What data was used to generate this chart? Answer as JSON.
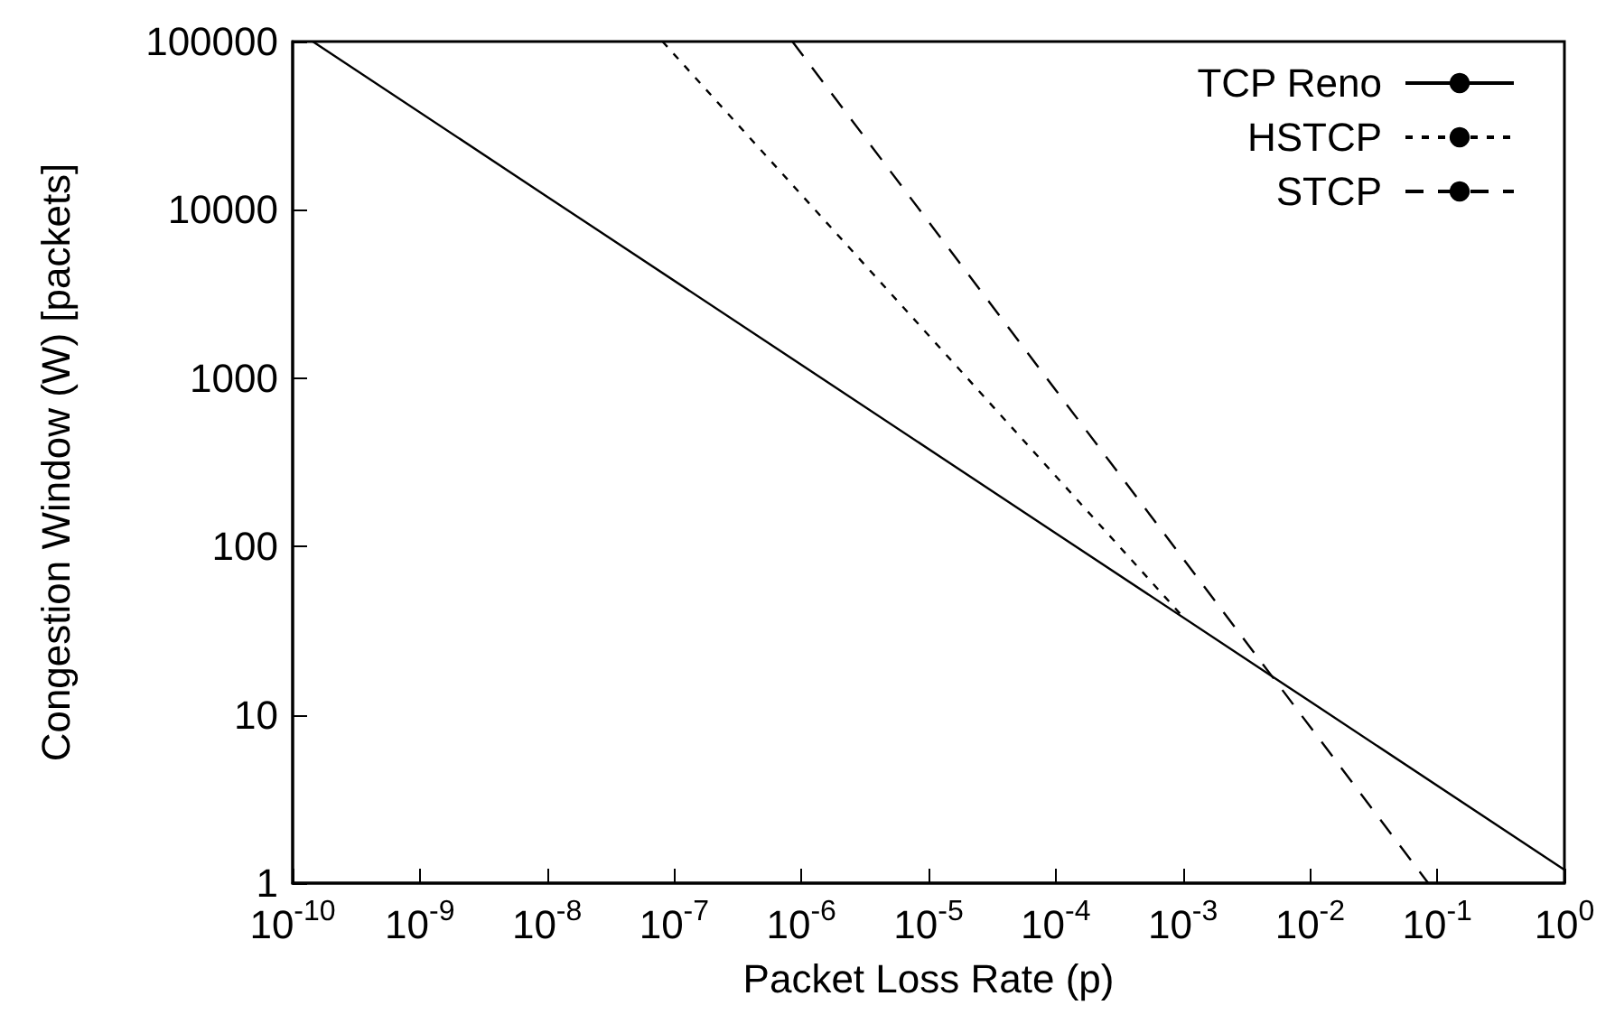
{
  "chart_data": {
    "type": "line",
    "xlabel": "Packet Loss Rate (p)",
    "ylabel": "Congestion Window (W) [packets]",
    "log": "xy",
    "grid": false,
    "legend": "top right",
    "marker": "none",
    "xlim": [
      1e-10,
      1
    ],
    "ylim": [
      1,
      100000
    ],
    "xticks": [
      {
        "value": 1e-10,
        "label": "10$^{-10}$"
      },
      {
        "value": 1e-09,
        "label": "10$^{-9}$"
      },
      {
        "value": 1e-08,
        "label": "10$^{-8}$"
      },
      {
        "value": 1e-07,
        "label": "10$^{-7}$"
      },
      {
        "value": 1e-06,
        "label": "10$^{-6}$"
      },
      {
        "value": 1e-05,
        "label": "10$^{-5}$"
      },
      {
        "value": 0.0001,
        "label": "10$^{-4}$"
      },
      {
        "value": 0.001,
        "label": "10$^{-3}$"
      },
      {
        "value": 0.01,
        "label": "10$^{-2}$"
      },
      {
        "value": 0.1,
        "label": "10$^{-1}$"
      },
      {
        "value": 1,
        "label": "10$^{0}$"
      }
    ],
    "yticks": [
      1,
      10,
      100,
      1000,
      10000,
      100000
    ],
    "series": [
      {
        "name": "TCP Reno",
        "color": "#000000",
        "line_style": "solid",
        "x": [
          1.44e-10,
          1e-08,
          1e-06,
          0.0001,
          0.01,
          1
        ],
        "values": [
          100000,
          12000,
          1200,
          120,
          12,
          1.2
        ]
      },
      {
        "name": "HSTCP",
        "color": "#000000",
        "line_style": "dotted",
        "x": [
          8.1e-08,
          1e-06,
          1e-05,
          0.0001,
          0.00104
        ],
        "values": [
          100000,
          12300,
          1800,
          262,
          37
        ]
      },
      {
        "name": "STCP",
        "color": "#000000",
        "line_style": "dashed",
        "x": [
          8.5e-07,
          1e-05,
          0.0001,
          0.001,
          0.01,
          0.085
        ],
        "values": [
          100000,
          8500,
          850,
          85,
          8.5,
          1
        ]
      }
    ]
  }
}
